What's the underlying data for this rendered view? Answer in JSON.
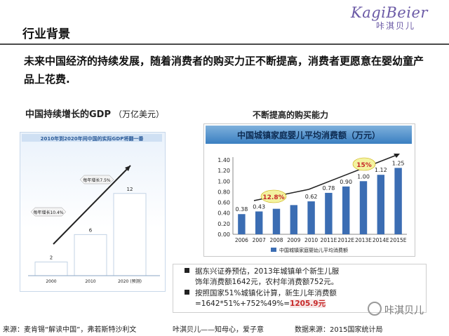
{
  "logo": {
    "word": "KagiBeier",
    "sub": "咔淇贝儿"
  },
  "section_title": "行业背景",
  "headline": "未来中国经济的持续发展，随着消费者的购买力正不断提高，消费者更愿意在婴幼童产品上花费.",
  "left_chart_title": "中国持续增长的GDP",
  "left_chart_unit": "（万亿美元）",
  "right_chart_title": "不断提高的购买能力",
  "chart_data": [
    {
      "type": "bar",
      "title": "2010年到2020年间中国的实际GDP将翻一番",
      "categories": [
        "2000",
        "2010",
        "2020 (预测)"
      ],
      "values": [
        2,
        6,
        12
      ],
      "annotations": [
        "每年增长10.4%",
        "每年增长7.5%"
      ],
      "ylim": [
        0,
        13
      ],
      "grid": false
    },
    {
      "type": "bar",
      "title": "中国城镇家庭婴儿平均消费额（万元）",
      "categories": [
        "2006",
        "2007",
        "2008",
        "2009",
        "2010",
        "2011E",
        "2012E",
        "2013E",
        "2014E",
        "2015E"
      ],
      "series": [
        {
          "name": "中国城镇家庭婴幼儿平均消费额",
          "values": [
            0.38,
            0.43,
            0.48,
            0.55,
            0.62,
            0.78,
            0.9,
            1.0,
            1.12,
            1.25
          ]
        }
      ],
      "value_labels": [
        "0.38",
        "0.43",
        "",
        "",
        "0.62",
        "0.78",
        "0.90",
        "1.00",
        "1.12",
        "1.25"
      ],
      "yticks": [
        "0.00",
        "0.20",
        "0.40",
        "0.60",
        "0.80",
        "1.00",
        "1.20",
        "1.40"
      ],
      "ylim": [
        0,
        1.4
      ],
      "annotations": [
        "12.8%",
        "15%"
      ],
      "legend_position": "bottom",
      "grid": false
    }
  ],
  "notes": {
    "n1_a": "据东兴证券预估，2013年城镇单个新生儿服",
    "n1_b": "饰年消费额1642元，农村年消费额752元。",
    "n2_a": "按照国家51%城镇化计算，新生儿年消费额",
    "n2_b": "=1642*51%+752%49%=",
    "n2_hl": "1205.9元"
  },
  "footer": {
    "source": "来源：麦肯锡“解读中国”，弗若斯特沙利文",
    "middle": "咔淇贝儿——知母心，爱子意",
    "data": "数据来源：2015国家统计局",
    "wechat": "咔淇贝儿"
  },
  "colors": {
    "bar_left": "#ffffff",
    "bar_right": "#3b6db3",
    "accent_red": "#c62828",
    "oval": "#f3f3a0"
  }
}
